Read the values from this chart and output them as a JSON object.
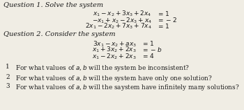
{
  "bg_color": "#f0ede4",
  "text_color": "#1a1a1a",
  "figsize": [
    3.5,
    1.59
  ],
  "dpi": 100,
  "q1_header": "Question 1. Solve the system",
  "q2_header": "Question 2. Consider the system",
  "fs_header": 7.0,
  "fs_eq": 6.5,
  "fs_num": 6.4,
  "eq1_lhs": [
    "$x_1 - x_2 + 3x_3 + 2x_4$",
    "$-x_1 + x_2 - 2x_3 + x_4$",
    "$2x_1 - 2x_2 + 7x_3 + 7x_4$"
  ],
  "eq1_rhs": [
    "$= 1$",
    "$= -2$",
    "$= 1$"
  ],
  "eq2_lhs": [
    "$3x_1 - x_2 + ax_3$",
    "$x_1 + 3x_2 + 2x_3$",
    "$x_1 - 2x_2 + 2x_3$"
  ],
  "eq2_rhs": [
    "$= 1$",
    "$= -b$",
    "$= 4$"
  ],
  "num_items": [
    [
      "1",
      "For what values of $a, b$ will the system be inconsistent?"
    ],
    [
      "2",
      "For what values of $a, b$ will the system have only one solution?"
    ],
    [
      "3",
      "For what values of $a, b$ will the saystem have infinitely many solutions?"
    ]
  ]
}
